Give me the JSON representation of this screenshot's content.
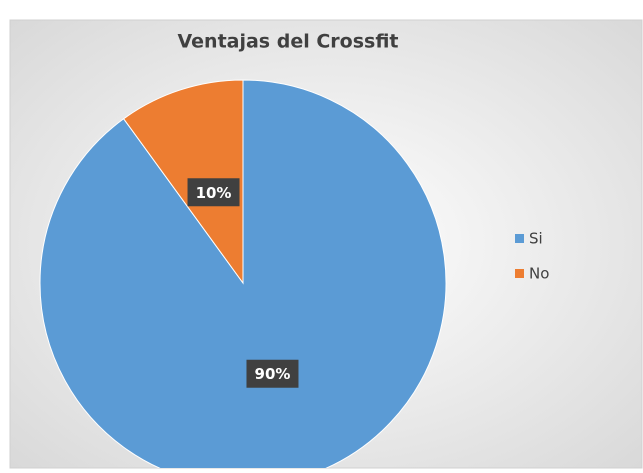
{
  "chart_data": {
    "type": "pie",
    "title": "Ventajas del Crossfit",
    "categories": [
      "Si",
      "No"
    ],
    "values": [
      90,
      10
    ],
    "value_labels": [
      "90%",
      "10%"
    ],
    "colors": [
      "#5b9bd5",
      "#ed7d31"
    ],
    "legend": "right"
  }
}
